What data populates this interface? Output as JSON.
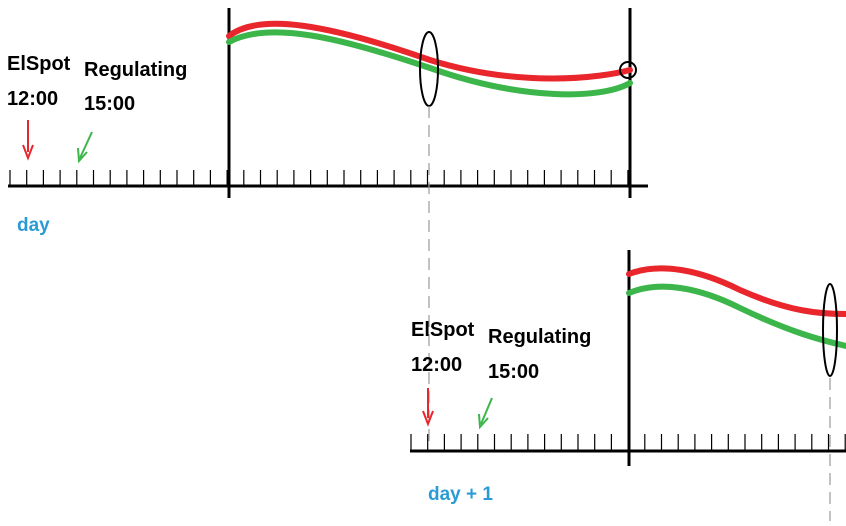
{
  "colors": {
    "red": "#e8262c",
    "green": "#3cb54a",
    "axis": "#000000",
    "day_label": "#2b9bd6",
    "guide": "#999999"
  },
  "day1": {
    "elspot_name": "ElSpot",
    "elspot_time": "12:00",
    "regulating_name": "Regulating",
    "regulating_time": "15:00",
    "day_label": "day"
  },
  "day2": {
    "elspot_name": "ElSpot",
    "elspot_time": "12:00",
    "regulating_name": "Regulating",
    "regulating_time": "15:00",
    "day_label": "day + 1"
  }
}
